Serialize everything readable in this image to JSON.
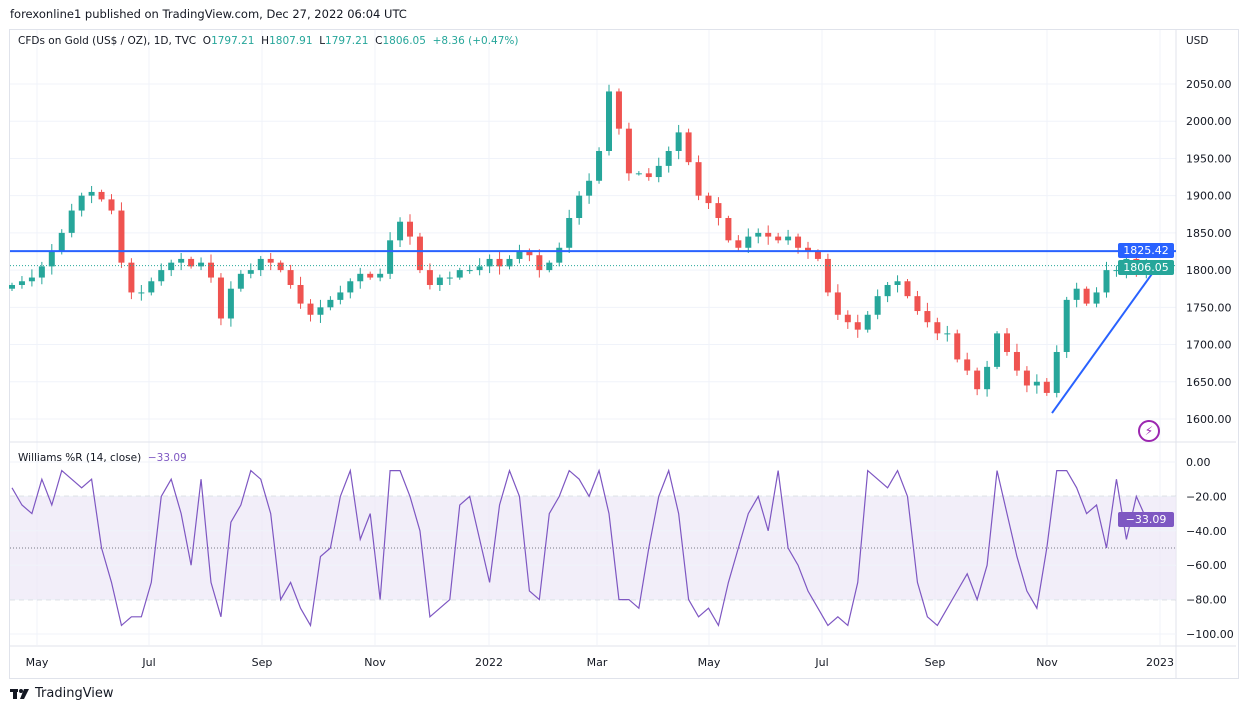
{
  "header": {
    "published": "forexonline1 published on TradingView.com, Dec 27, 2022 06:04 UTC"
  },
  "legend": {
    "symbol": "CFDs on Gold (US$ / OZ), 1D, TVC",
    "o_label": "O",
    "o": "1797.21",
    "h_label": "H",
    "h": "1807.91",
    "l_label": "L",
    "l": "1797.21",
    "c_label": "C",
    "c": "1806.05",
    "change": "+8.36 (+0.47%)"
  },
  "indicator": {
    "name": "Williams %R (14, close)",
    "value": "−33.09"
  },
  "price_axis": {
    "currency": "USD",
    "resistance_tag": "1825.42",
    "last_price_tag": "1806.05",
    "indicator_tag": "−33.09"
  },
  "footer": {
    "brand": "TradingView"
  },
  "colors": {
    "up": "#26a69a",
    "down": "#ef5350",
    "line": "#2962ff",
    "indicator": "#7e57c2",
    "band": "#ede7f6"
  },
  "chart_data": [
    {
      "type": "candlestick",
      "title": "CFDs on Gold (US$ / OZ), 1D, TVC",
      "ylim": [
        1585,
        2090
      ],
      "yticks": [
        "2050.00",
        "2000.00",
        "1950.00",
        "1900.00",
        "1850.00",
        "1800.00",
        "1750.00",
        "1700.00",
        "1650.00",
        "1600.00"
      ],
      "ytick_values": [
        2050,
        2000,
        1950,
        1900,
        1850,
        1800,
        1750,
        1700,
        1650,
        1600
      ],
      "xticks": [
        "May",
        "Jul",
        "Sep",
        "Nov",
        "2022",
        "Mar",
        "May",
        "Jul",
        "Sep",
        "Nov",
        "2023"
      ],
      "first_open": 1775,
      "closes": [
        1780,
        1785,
        1790,
        1805,
        1825,
        1850,
        1880,
        1900,
        1905,
        1895,
        1880,
        1810,
        1770,
        1770,
        1785,
        1800,
        1810,
        1815,
        1805,
        1810,
        1790,
        1735,
        1775,
        1795,
        1800,
        1815,
        1810,
        1800,
        1780,
        1755,
        1740,
        1750,
        1760,
        1770,
        1785,
        1795,
        1790,
        1795,
        1840,
        1865,
        1845,
        1800,
        1780,
        1790,
        1790,
        1800,
        1800,
        1805,
        1815,
        1805,
        1815,
        1825,
        1820,
        1800,
        1810,
        1830,
        1870,
        1900,
        1920,
        1960,
        2040,
        1990,
        1930,
        1930,
        1925,
        1940,
        1960,
        1985,
        1945,
        1900,
        1890,
        1870,
        1840,
        1830,
        1845,
        1850,
        1845,
        1840,
        1845,
        1830,
        1825,
        1815,
        1770,
        1740,
        1730,
        1720,
        1740,
        1765,
        1780,
        1785,
        1765,
        1745,
        1730,
        1715,
        1715,
        1680,
        1665,
        1640,
        1670,
        1715,
        1690,
        1665,
        1645,
        1650,
        1635,
        1690,
        1760,
        1775,
        1755,
        1770,
        1800,
        1800,
        1815,
        1795,
        1806.05
      ],
      "horizontal_line": 1825.42,
      "last_price": 1806.05,
      "trendline": {
        "from": 1608,
        "to": 1795,
        "from_label": "Nov",
        "to_label": "2023"
      }
    },
    {
      "type": "line",
      "title": "Williams %R (14, close)",
      "ylim": [
        -100,
        0
      ],
      "yticks": [
        "0.00",
        "−20.00",
        "−40.00",
        "−60.00",
        "−80.00",
        "−100.00"
      ],
      "ytick_values": [
        0,
        -20,
        -40,
        -60,
        -80,
        -100
      ],
      "bands": {
        "upper": -20,
        "middle": -50,
        "lower": -80
      },
      "values": [
        -15,
        -25,
        -30,
        -10,
        -25,
        -5,
        -10,
        -15,
        -10,
        -50,
        -70,
        -95,
        -90,
        -90,
        -70,
        -20,
        -10,
        -30,
        -60,
        -10,
        -70,
        -90,
        -35,
        -25,
        -5,
        -10,
        -30,
        -80,
        -70,
        -85,
        -95,
        -55,
        -50,
        -20,
        -5,
        -45,
        -30,
        -80,
        -5,
        -5,
        -20,
        -40,
        -90,
        -85,
        -80,
        -25,
        -20,
        -45,
        -70,
        -25,
        -5,
        -20,
        -75,
        -80,
        -30,
        -20,
        -5,
        -10,
        -20,
        -5,
        -30,
        -80,
        -80,
        -85,
        -50,
        -20,
        -5,
        -30,
        -80,
        -90,
        -85,
        -95,
        -70,
        -50,
        -30,
        -20,
        -40,
        -5,
        -50,
        -60,
        -75,
        -85,
        -95,
        -90,
        -95,
        -70,
        -5,
        -10,
        -15,
        -5,
        -20,
        -70,
        -90,
        -95,
        -85,
        -75,
        -65,
        -80,
        -60,
        -5,
        -30,
        -55,
        -75,
        -85,
        -50,
        -5,
        -5,
        -15,
        -30,
        -25,
        -50,
        -10,
        -45,
        -20,
        -33.09
      ]
    }
  ]
}
